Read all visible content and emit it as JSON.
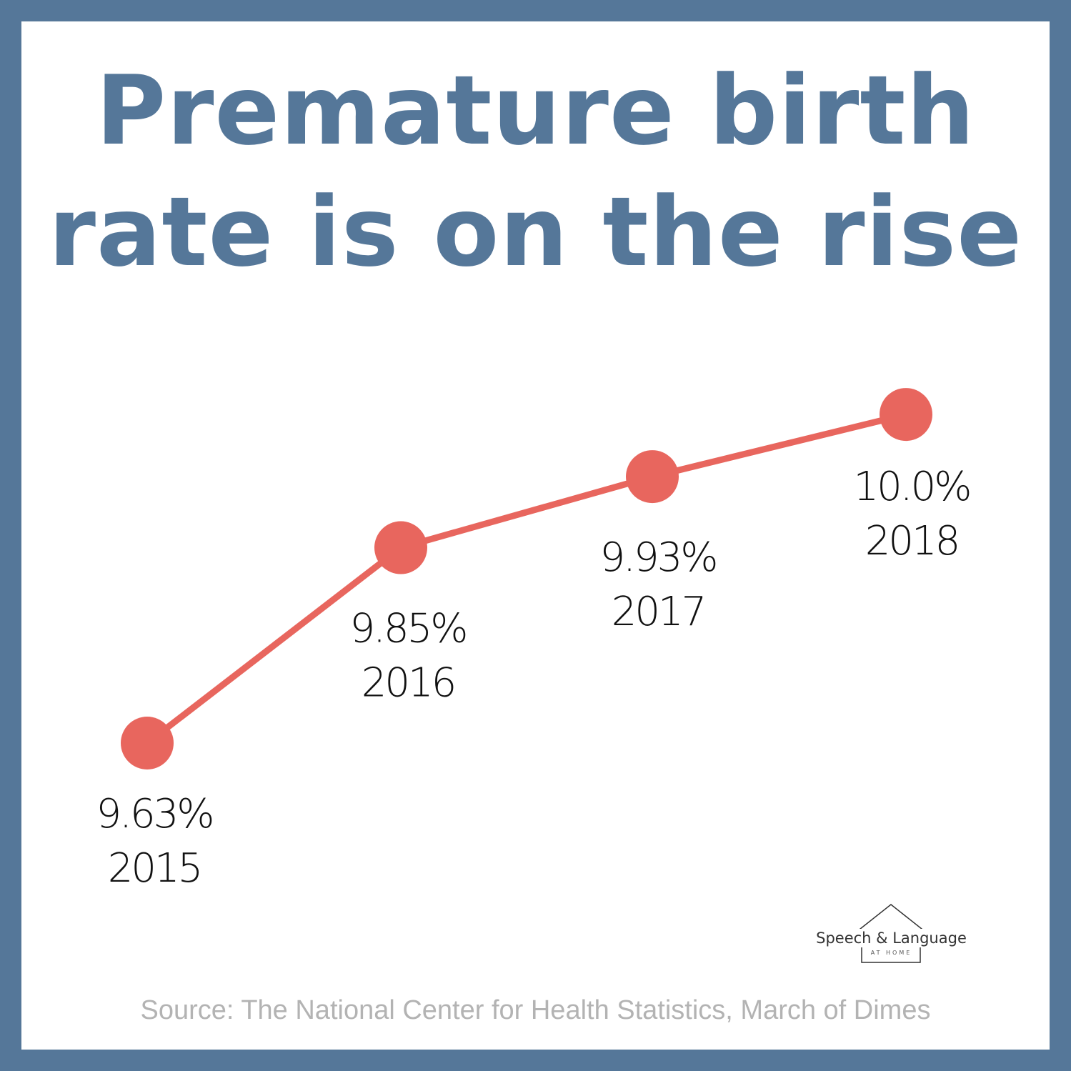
{
  "title": {
    "line1": "Premature birth",
    "line2": "rate is on the rise"
  },
  "colors": {
    "border": "#557799",
    "title": "#557799",
    "series": "#E8665E",
    "source": "#B3B3B3"
  },
  "chart_data": {
    "type": "line",
    "title": "Premature birth rate is on the rise",
    "x": [
      "2015",
      "2016",
      "2017",
      "2018"
    ],
    "values": [
      9.63,
      9.85,
      9.93,
      10.0
    ],
    "data_labels": [
      "9.63%",
      "9.85%",
      "9.93%",
      "10.0%"
    ],
    "xlabel": "",
    "ylabel": "",
    "ylim": [
      9.5,
      10.1
    ],
    "grid": false,
    "legend": "none"
  },
  "logo": {
    "name": "Speech & Language",
    "tagline": "AT HOME"
  },
  "source": "Source: The National Center for Health Statistics, March of Dimes"
}
